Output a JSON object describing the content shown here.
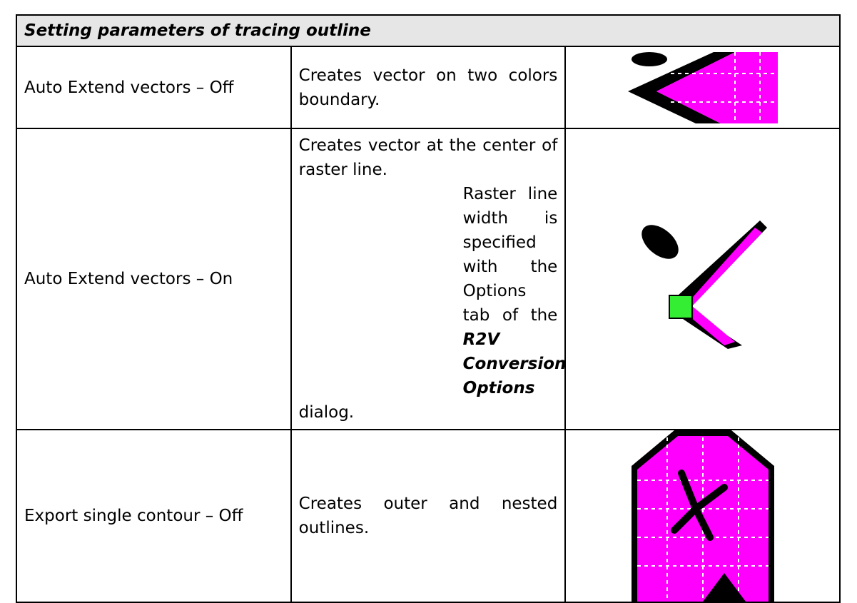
{
  "header": {
    "title": "Setting parameters of tracing outline"
  },
  "table": {
    "rows": [
      {
        "label": "Auto Extend vectors – Off",
        "description": [
          "Creates vector on two colors boundary."
        ]
      },
      {
        "label": "Auto Extend vectors – On",
        "description": [
          "Creates vector at the center of raster line.",
          "Raster line width is specified with the Options tab of the",
          "R2V Conversion Options",
          "dialog."
        ]
      },
      {
        "label": "Export single contour – Off",
        "description": [
          "Creates outer and nested outlines."
        ]
      }
    ]
  }
}
